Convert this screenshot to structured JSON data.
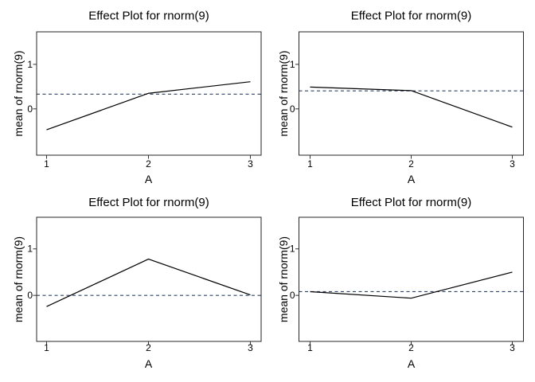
{
  "figure": {
    "kind": "R effects package effect plots",
    "grid": "2x2"
  },
  "palette": {
    "background": "#ffffff",
    "line": "#000000",
    "reference_line": "#2e4369",
    "panel_border": "#262626",
    "tick_mark": "#333333",
    "tick_label": "#4d4d4d",
    "axis_label": "#000000",
    "title": "#000000"
  },
  "chart_data": [
    {
      "type": "line",
      "position": "top-left",
      "title": "Effect Plot for rnorm(9)",
      "xlabel": "A",
      "ylabel": "mean of rnorm(9)",
      "x": [
        1,
        2,
        3
      ],
      "x_tick_labels": [
        "1",
        "2",
        "3"
      ],
      "y_ticks": [
        0,
        1
      ],
      "y_tick_labels": [
        "0",
        "1"
      ],
      "ylim": [
        -1.04,
        1.73
      ],
      "values": [
        -0.47,
        0.35,
        0.61
      ],
      "reference_line_y": 0.33,
      "reference_line_style": "dashed",
      "gridlines": false,
      "legend": false
    },
    {
      "type": "line",
      "position": "top-right",
      "title": "Effect Plot for rnorm(9)",
      "xlabel": "A",
      "ylabel": "mean of rnorm(9)",
      "x": [
        1,
        2,
        3
      ],
      "x_tick_labels": [
        "1",
        "2",
        "3"
      ],
      "y_ticks": [
        0,
        1
      ],
      "y_tick_labels": [
        "0",
        "1"
      ],
      "ylim": [
        -1.04,
        1.73
      ],
      "values": [
        0.49,
        0.41,
        -0.41
      ],
      "reference_line_y": 0.405,
      "reference_line_style": "dashed",
      "gridlines": false,
      "legend": false
    },
    {
      "type": "line",
      "position": "bottom-left",
      "title": "Effect Plot for rnorm(9)",
      "xlabel": "A",
      "ylabel": "mean of rnorm(9)",
      "x": [
        1,
        2,
        3
      ],
      "x_tick_labels": [
        "1",
        "2",
        "3"
      ],
      "y_ticks": [
        0,
        1
      ],
      "y_tick_labels": [
        "0",
        "1"
      ],
      "ylim": [
        -0.99,
        1.68
      ],
      "values": [
        -0.24,
        0.78,
        0.01
      ],
      "reference_line_y": 0.0,
      "reference_line_style": "dashed",
      "gridlines": false,
      "legend": false
    },
    {
      "type": "line",
      "position": "bottom-right",
      "title": "Effect Plot for rnorm(9)",
      "xlabel": "A",
      "ylabel": "mean of rnorm(9)",
      "x": [
        1,
        2,
        3
      ],
      "x_tick_labels": [
        "1",
        "2",
        "3"
      ],
      "y_ticks": [
        0,
        1
      ],
      "y_tick_labels": [
        "0",
        "1"
      ],
      "ylim": [
        -0.99,
        1.68
      ],
      "values": [
        0.08,
        -0.06,
        0.5
      ],
      "reference_line_y": 0.08,
      "reference_line_style": "dashed",
      "gridlines": false,
      "legend": false
    }
  ]
}
